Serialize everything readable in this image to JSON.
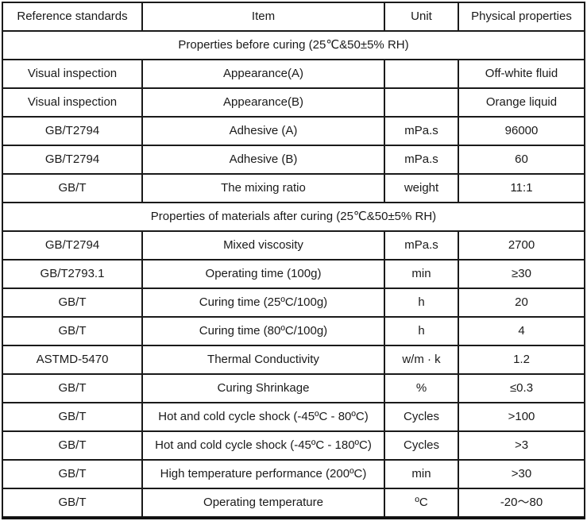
{
  "table": {
    "columns": [
      {
        "key": "reference_standards",
        "label": "Reference standards"
      },
      {
        "key": "item",
        "label": "Item"
      },
      {
        "key": "unit",
        "label": "Unit"
      },
      {
        "key": "physical_properties",
        "label": "Physical properties"
      }
    ],
    "rows": [
      {
        "type": "section",
        "label": "Properties before curing (25℃&50±5% RH)"
      },
      {
        "type": "data",
        "reference_standard": "Visual inspection",
        "item": "Appearance(A)",
        "unit": "",
        "value": "Off-white fluid"
      },
      {
        "type": "data",
        "reference_standard": "Visual inspection",
        "item": "Appearance(B)",
        "unit": "",
        "value": "Orange liquid"
      },
      {
        "type": "data",
        "reference_standard": "GB/T2794",
        "item": "Adhesive (A)",
        "unit": "mPa.s",
        "value": "96000"
      },
      {
        "type": "data",
        "reference_standard": "GB/T2794",
        "item": "Adhesive (B)",
        "unit": "mPa.s",
        "value": "60"
      },
      {
        "type": "data",
        "reference_standard": "GB/T",
        "item": "The mixing ratio",
        "unit": "weight",
        "value": "11:1"
      },
      {
        "type": "section",
        "label": "Properties of materials after curing (25℃&50±5% RH)"
      },
      {
        "type": "data",
        "reference_standard": "GB/T2794",
        "item": "Mixed viscosity",
        "unit": "mPa.s",
        "value": "2700"
      },
      {
        "type": "data",
        "reference_standard": "GB/T2793.1",
        "item": "Operating time (100g)",
        "unit": "min",
        "value": "≥30"
      },
      {
        "type": "data",
        "reference_standard": "GB/T",
        "item": "Curing time (25ºC/100g)",
        "unit": "h",
        "value": "20"
      },
      {
        "type": "data",
        "reference_standard": "GB/T",
        "item": "Curing time (80ºC/100g)",
        "unit": "h",
        "value": "4"
      },
      {
        "type": "data",
        "reference_standard": "ASTMD-5470",
        "item": "Thermal Conductivity",
        "unit": "w/m · k",
        "value": "1.2"
      },
      {
        "type": "data",
        "reference_standard": "GB/T",
        "item": "Curing Shrinkage",
        "unit": "%",
        "value": "≤0.3"
      },
      {
        "type": "data",
        "reference_standard": "GB/T",
        "item": "Hot and cold cycle shock (-45ºC - 80ºC)",
        "unit": "Cycles",
        "value": ">100"
      },
      {
        "type": "data",
        "reference_standard": "GB/T",
        "item": "Hot and cold cycle shock (-45ºC - 180ºC)",
        "unit": "Cycles",
        "value": ">3"
      },
      {
        "type": "data",
        "reference_standard": "GB/T",
        "item": "High temperature performance (200ºC)",
        "unit": "min",
        "value": ">30"
      },
      {
        "type": "data",
        "reference_standard": "GB/T",
        "item": "Operating temperature",
        "unit": "ºC",
        "value": "-20～80"
      }
    ]
  }
}
